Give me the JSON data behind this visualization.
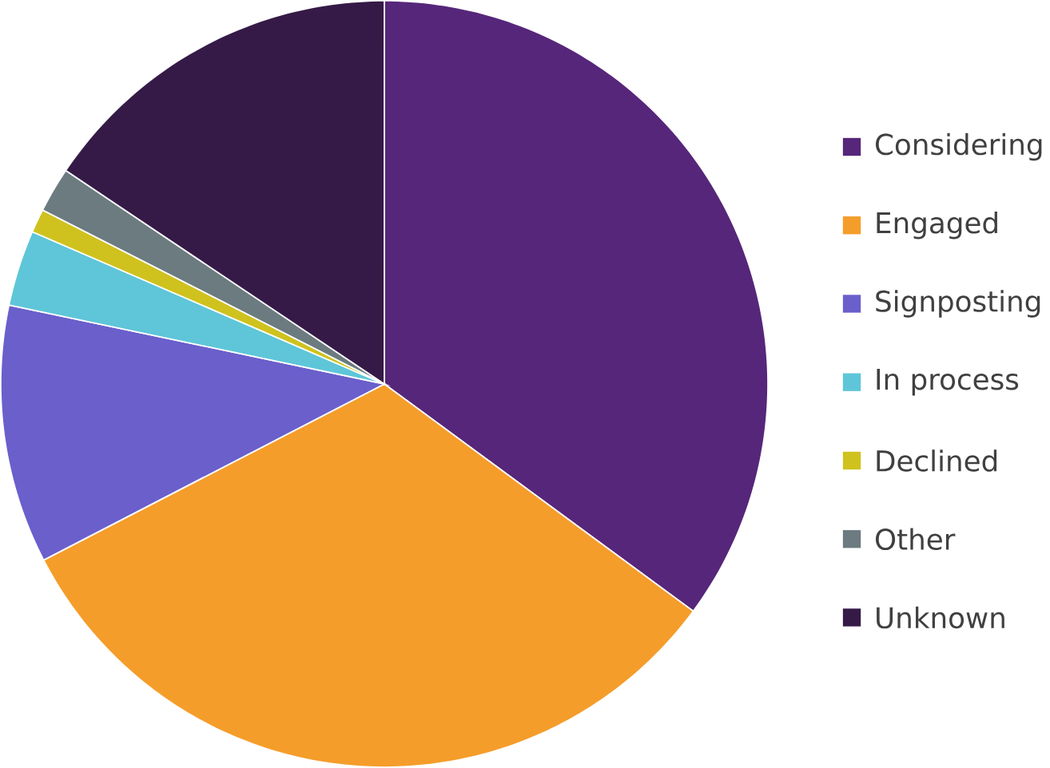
{
  "chart_data": {
    "type": "pie",
    "categories": [
      "Considering",
      "Engaged",
      "Signposting",
      "In process",
      "Declined",
      "Other",
      "Unknown"
    ],
    "values": [
      35.1,
      32.3,
      10.9,
      3.2,
      1.0,
      1.9,
      15.6
    ],
    "colors": [
      "#56267a",
      "#f59d2a",
      "#6a5fcb",
      "#5ec6d8",
      "#cfc21f",
      "#6b7b80",
      "#351a47"
    ],
    "legend": "right"
  }
}
